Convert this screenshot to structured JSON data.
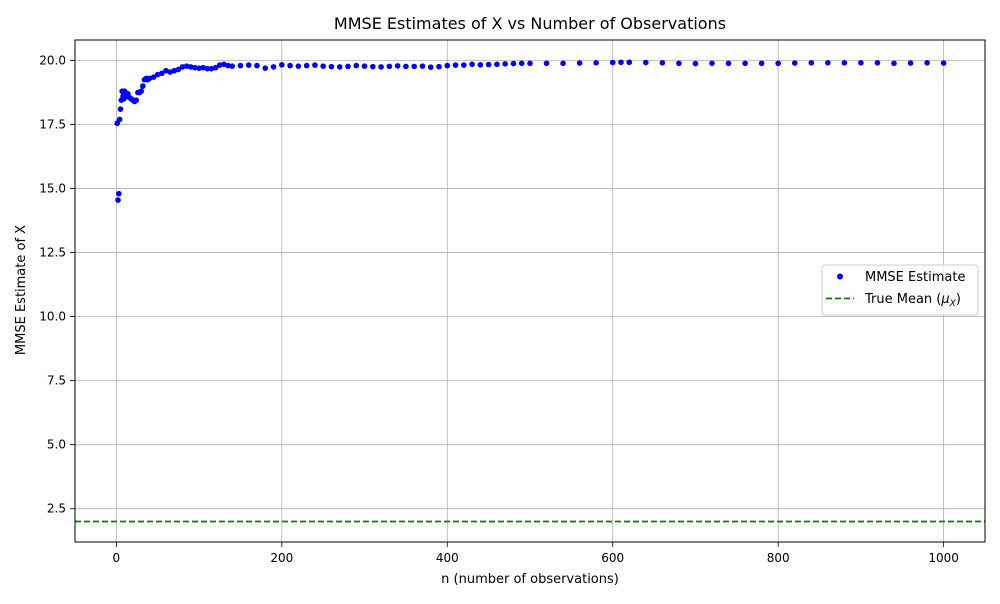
{
  "chart_data": {
    "type": "scatter",
    "title": "MMSE Estimates of X vs Number of Observations",
    "xlabel": "n (number of observations)",
    "ylabel": "MMSE Estimate of X",
    "xlim": [
      -50,
      1050
    ],
    "ylim": [
      1.2,
      20.8
    ],
    "xticks": [
      0,
      200,
      400,
      600,
      800,
      1000
    ],
    "xtick_labels": [
      "0",
      "200",
      "400",
      "600",
      "800",
      "1000"
    ],
    "yticks": [
      2.5,
      5.0,
      7.5,
      10.0,
      12.5,
      15.0,
      17.5,
      20.0
    ],
    "ytick_labels": [
      "2.5",
      "5.0",
      "7.5",
      "10.0",
      "12.5",
      "15.0",
      "17.5",
      "20.0"
    ],
    "grid": true,
    "legend_position": "center-right",
    "series": [
      {
        "name": "MMSE Estimate",
        "kind": "scatter",
        "color": "#0000ff",
        "points": [
          [
            1,
            17.55
          ],
          [
            2,
            14.55
          ],
          [
            3,
            14.8
          ],
          [
            4,
            17.7
          ],
          [
            5,
            18.1
          ],
          [
            6,
            18.45
          ],
          [
            7,
            18.8
          ],
          [
            8,
            18.6
          ],
          [
            9,
            18.5
          ],
          [
            10,
            18.8
          ],
          [
            12,
            18.6
          ],
          [
            14,
            18.7
          ],
          [
            16,
            18.55
          ],
          [
            18,
            18.5
          ],
          [
            20,
            18.45
          ],
          [
            22,
            18.4
          ],
          [
            24,
            18.45
          ],
          [
            26,
            18.75
          ],
          [
            28,
            18.75
          ],
          [
            30,
            18.8
          ],
          [
            32,
            19.0
          ],
          [
            34,
            19.25
          ],
          [
            36,
            19.3
          ],
          [
            38,
            19.25
          ],
          [
            40,
            19.3
          ],
          [
            45,
            19.35
          ],
          [
            50,
            19.45
          ],
          [
            55,
            19.5
          ],
          [
            60,
            19.6
          ],
          [
            65,
            19.55
          ],
          [
            70,
            19.6
          ],
          [
            75,
            19.65
          ],
          [
            80,
            19.75
          ],
          [
            85,
            19.78
          ],
          [
            90,
            19.75
          ],
          [
            95,
            19.72
          ],
          [
            100,
            19.7
          ],
          [
            105,
            19.72
          ],
          [
            110,
            19.68
          ],
          [
            115,
            19.68
          ],
          [
            120,
            19.72
          ],
          [
            125,
            19.82
          ],
          [
            130,
            19.85
          ],
          [
            135,
            19.8
          ],
          [
            140,
            19.78
          ],
          [
            150,
            19.8
          ],
          [
            160,
            19.82
          ],
          [
            170,
            19.8
          ],
          [
            180,
            19.7
          ],
          [
            190,
            19.75
          ],
          [
            200,
            19.83
          ],
          [
            210,
            19.8
          ],
          [
            220,
            19.78
          ],
          [
            230,
            19.8
          ],
          [
            240,
            19.82
          ],
          [
            250,
            19.78
          ],
          [
            260,
            19.76
          ],
          [
            270,
            19.75
          ],
          [
            280,
            19.77
          ],
          [
            290,
            19.8
          ],
          [
            300,
            19.78
          ],
          [
            310,
            19.76
          ],
          [
            320,
            19.75
          ],
          [
            330,
            19.77
          ],
          [
            340,
            19.79
          ],
          [
            350,
            19.77
          ],
          [
            360,
            19.77
          ],
          [
            370,
            19.78
          ],
          [
            380,
            19.74
          ],
          [
            390,
            19.76
          ],
          [
            400,
            19.8
          ],
          [
            410,
            19.82
          ],
          [
            420,
            19.82
          ],
          [
            430,
            19.85
          ],
          [
            440,
            19.83
          ],
          [
            450,
            19.84
          ],
          [
            460,
            19.85
          ],
          [
            470,
            19.87
          ],
          [
            480,
            19.88
          ],
          [
            490,
            19.89
          ],
          [
            500,
            19.89
          ],
          [
            520,
            19.89
          ],
          [
            540,
            19.89
          ],
          [
            560,
            19.9
          ],
          [
            580,
            19.91
          ],
          [
            600,
            19.92
          ],
          [
            610,
            19.93
          ],
          [
            620,
            19.93
          ],
          [
            640,
            19.92
          ],
          [
            660,
            19.91
          ],
          [
            680,
            19.89
          ],
          [
            700,
            19.88
          ],
          [
            720,
            19.89
          ],
          [
            740,
            19.89
          ],
          [
            760,
            19.89
          ],
          [
            780,
            19.89
          ],
          [
            800,
            19.89
          ],
          [
            820,
            19.9
          ],
          [
            840,
            19.91
          ],
          [
            860,
            19.91
          ],
          [
            880,
            19.91
          ],
          [
            900,
            19.91
          ],
          [
            920,
            19.91
          ],
          [
            940,
            19.89
          ],
          [
            960,
            19.9
          ],
          [
            980,
            19.91
          ],
          [
            1000,
            19.9
          ]
        ]
      },
      {
        "name": "True Mean ($\\mu_X$)",
        "kind": "hline",
        "value": 2.0,
        "color": "#008000",
        "dashed": true
      }
    ]
  }
}
